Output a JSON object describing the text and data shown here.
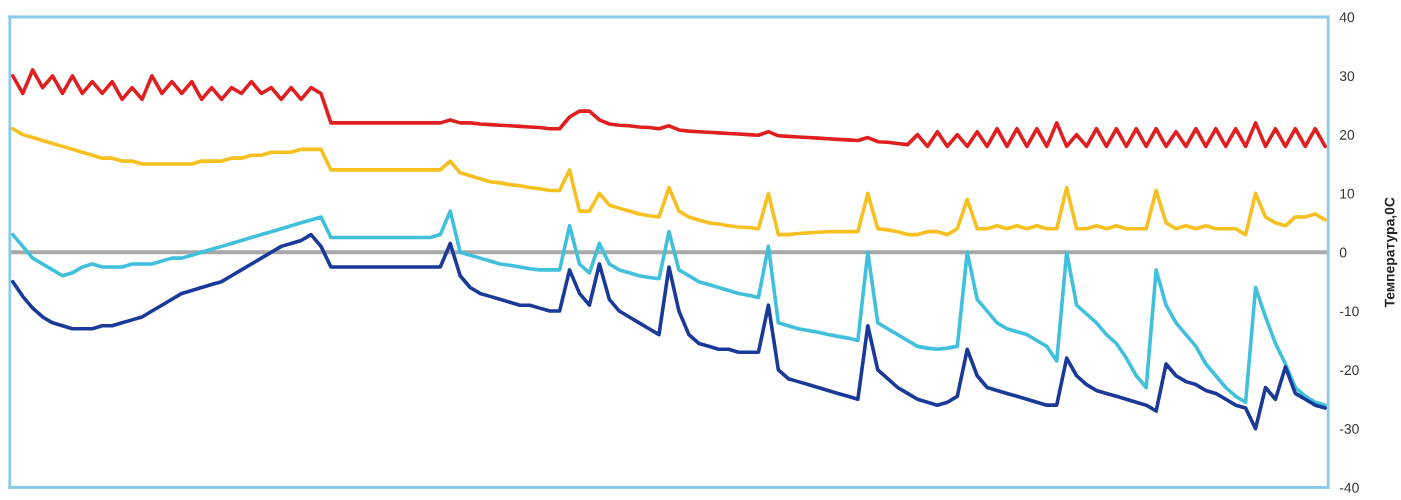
{
  "chart_data": {
    "type": "line",
    "ylabel": "Температура,0C",
    "categories": [
      null,
      null,
      null,
      null,
      null,
      null,
      null,
      null,
      null,
      null,
      null,
      null,
      null,
      null,
      null,
      null,
      null,
      null,
      null,
      null,
      null,
      null,
      null,
      null,
      null,
      null,
      null,
      null,
      null,
      null,
      null,
      null,
      null,
      null,
      null,
      null,
      null,
      null,
      null,
      null,
      null,
      null,
      null,
      null,
      null,
      null,
      null,
      null,
      null,
      null,
      null,
      null,
      null,
      null,
      null,
      null,
      null,
      null,
      null,
      null,
      null,
      null,
      null,
      null,
      null,
      null,
      null,
      null,
      null,
      null,
      null,
      null,
      null,
      null,
      null,
      null,
      null,
      null,
      null,
      null,
      null,
      null,
      null,
      null,
      null,
      null,
      null,
      null,
      null,
      null,
      null,
      null,
      null,
      null,
      null,
      null,
      null,
      null,
      null,
      null,
      null,
      null,
      null,
      null,
      null,
      null,
      null,
      null,
      null,
      null,
      null,
      null,
      null,
      null,
      null,
      null,
      null,
      null,
      null,
      null,
      null,
      null,
      null,
      null,
      null,
      null,
      null,
      null,
      null,
      null,
      null,
      null,
      null
    ],
    "series": [
      {
        "color": "#e02020",
        "values": [
          30,
          27,
          31,
          28,
          30,
          27,
          30,
          27,
          29,
          27,
          29,
          26,
          28,
          26,
          30,
          27,
          29,
          27,
          29,
          26,
          28,
          26,
          28,
          27,
          29,
          27,
          28,
          26,
          28,
          26,
          28,
          27,
          22,
          22,
          22,
          22,
          22,
          22,
          22,
          22,
          22,
          22,
          22,
          22,
          22.5,
          22,
          22,
          21.8,
          21.7,
          21.6,
          21.5,
          21.4,
          21.3,
          21.2,
          21,
          21,
          23,
          24,
          24,
          22.5,
          21.8,
          21.6,
          21.5,
          21.3,
          21.2,
          21,
          21.5,
          20.8,
          20.6,
          20.5,
          20.4,
          20.3,
          20.2,
          20.1,
          20,
          19.9,
          20.5,
          19.8,
          19.7,
          19.6,
          19.5,
          19.4,
          19.3,
          19.2,
          19.1,
          19,
          19.5,
          18.8,
          18.7,
          18.5,
          18.3,
          20,
          18,
          20.5,
          18,
          20,
          18,
          20.5,
          18,
          21,
          18,
          21,
          18,
          21,
          18,
          22,
          18,
          20,
          18,
          21,
          18,
          21,
          18,
          21,
          18,
          21,
          18,
          20.5,
          18,
          21,
          18,
          21,
          18,
          21,
          18,
          22,
          18,
          21,
          18,
          21,
          18,
          21,
          18
        ]
      },
      {
        "color": "#f5c020",
        "values": [
          21,
          20,
          19.5,
          19,
          18.5,
          18,
          17.5,
          17,
          16.5,
          16,
          16,
          15.5,
          15.5,
          15,
          15,
          15,
          15,
          15,
          15,
          15.5,
          15.5,
          15.5,
          16,
          16,
          16.5,
          16.5,
          17,
          17,
          17,
          17.5,
          17.5,
          17.5,
          14,
          14,
          14,
          14,
          14,
          14,
          14,
          14,
          14,
          14,
          14,
          14,
          15.5,
          13.5,
          13,
          12.5,
          12,
          11.8,
          11.5,
          11.3,
          11,
          10.8,
          10.5,
          10.5,
          14,
          7,
          7,
          10,
          8,
          7.5,
          7,
          6.5,
          6.2,
          6,
          11,
          7,
          6,
          5.5,
          5,
          4.8,
          4.5,
          4.3,
          4.2,
          4,
          10,
          3,
          3,
          3.2,
          3.3,
          3.4,
          3.5,
          3.5,
          3.5,
          3.5,
          10,
          4,
          3.8,
          3.5,
          3,
          3,
          3.5,
          3.5,
          3,
          4,
          9,
          4,
          4,
          4.5,
          4,
          4.5,
          4,
          4.5,
          4,
          4,
          11,
          4,
          4,
          4.5,
          4,
          4.5,
          4,
          4,
          4,
          10.5,
          5,
          4,
          4.5,
          4,
          4.5,
          4,
          4,
          4,
          3,
          10,
          6,
          5,
          4.5,
          6,
          6,
          6.5,
          5.5
        ]
      },
      {
        "color": "#40c0dc",
        "values": [
          3,
          1,
          -1,
          -2,
          -3,
          -4,
          -3.5,
          -2.5,
          -2,
          -2.5,
          -2.5,
          -2.5,
          -2,
          -2,
          -2,
          -1.5,
          -1,
          -1,
          -0.5,
          0,
          0.5,
          1,
          1.5,
          2,
          2.5,
          3,
          3.5,
          4,
          4.5,
          5,
          5.5,
          6,
          2.5,
          2.5,
          2.5,
          2.5,
          2.5,
          2.5,
          2.5,
          2.5,
          2.5,
          2.5,
          2.5,
          3,
          7,
          0,
          -0.5,
          -1,
          -1.5,
          -2,
          -2.2,
          -2.5,
          -2.8,
          -3,
          -3,
          -3,
          4.5,
          -2,
          -3.5,
          1.5,
          -2,
          -3,
          -3.5,
          -4,
          -4.3,
          -4.5,
          3.5,
          -3,
          -4,
          -5,
          -5.5,
          -6,
          -6.5,
          -7,
          -7.3,
          -7.7,
          1,
          -12,
          -12.5,
          -13,
          -13.3,
          -13.6,
          -14,
          -14.3,
          -14.6,
          -15,
          0,
          -12,
          -13,
          -14,
          -15,
          -16,
          -16.3,
          -16.5,
          -16.3,
          -16,
          0,
          -8,
          -10,
          -12,
          -13,
          -13.5,
          -14,
          -15,
          -16,
          -18.5,
          0,
          -9,
          -10.5,
          -12,
          -14,
          -15.5,
          -18,
          -21,
          -23,
          -3,
          -9,
          -12,
          -14,
          -16,
          -19,
          -21,
          -23,
          -24.5,
          -25.5,
          -6,
          -11,
          -15.5,
          -19,
          -23,
          -24.5,
          -25.5,
          -26
        ]
      },
      {
        "color": "#1a3a9a",
        "values": [
          -5,
          -7.5,
          -9.5,
          -11,
          -12,
          -12.5,
          -13,
          -13,
          -13,
          -12.5,
          -12.5,
          -12,
          -11.5,
          -11,
          -10,
          -9,
          -8,
          -7,
          -6.5,
          -6,
          -5.5,
          -5,
          -4,
          -3,
          -2,
          -1,
          0,
          1,
          1.5,
          2,
          3,
          1,
          -2.5,
          -2.5,
          -2.5,
          -2.5,
          -2.5,
          -2.5,
          -2.5,
          -2.5,
          -2.5,
          -2.5,
          -2.5,
          -2.5,
          1.5,
          -4,
          -6,
          -7,
          -7.5,
          -8,
          -8.5,
          -9,
          -9,
          -9.5,
          -10,
          -10,
          -3,
          -7,
          -9,
          -2,
          -8,
          -10,
          -11,
          -12,
          -13,
          -14,
          -2.5,
          -10,
          -14,
          -15.5,
          -16,
          -16.5,
          -16.5,
          -17,
          -17,
          -17,
          -9,
          -20,
          -21.5,
          -22,
          -22.5,
          -23,
          -23.5,
          -24,
          -24.5,
          -25,
          -12.5,
          -20,
          -21.5,
          -23,
          -24,
          -25,
          -25.5,
          -26,
          -25.5,
          -24.5,
          -16.5,
          -21,
          -23,
          -23.5,
          -24,
          -24.5,
          -25,
          -25.5,
          -26,
          -26,
          -18,
          -21,
          -22.5,
          -23.5,
          -24,
          -24.5,
          -25,
          -25.5,
          -26,
          -27,
          -19,
          -21,
          -22,
          -22.5,
          -23.5,
          -24,
          -25,
          -26,
          -26.5,
          -30,
          -23,
          -25,
          -19.5,
          -24,
          -25,
          -26,
          -26.5
        ]
      }
    ],
    "ylim": [
      -40,
      40
    ],
    "yticks": [
      -40,
      -30,
      -20,
      -10,
      0,
      10,
      20,
      30,
      40
    ],
    "ref_lines": [
      {
        "axis": "y",
        "value": 0,
        "color": "#a8a8a8"
      }
    ],
    "tick_labels": "y",
    "grid": false,
    "line_style": "solid",
    "marker": "none"
  }
}
